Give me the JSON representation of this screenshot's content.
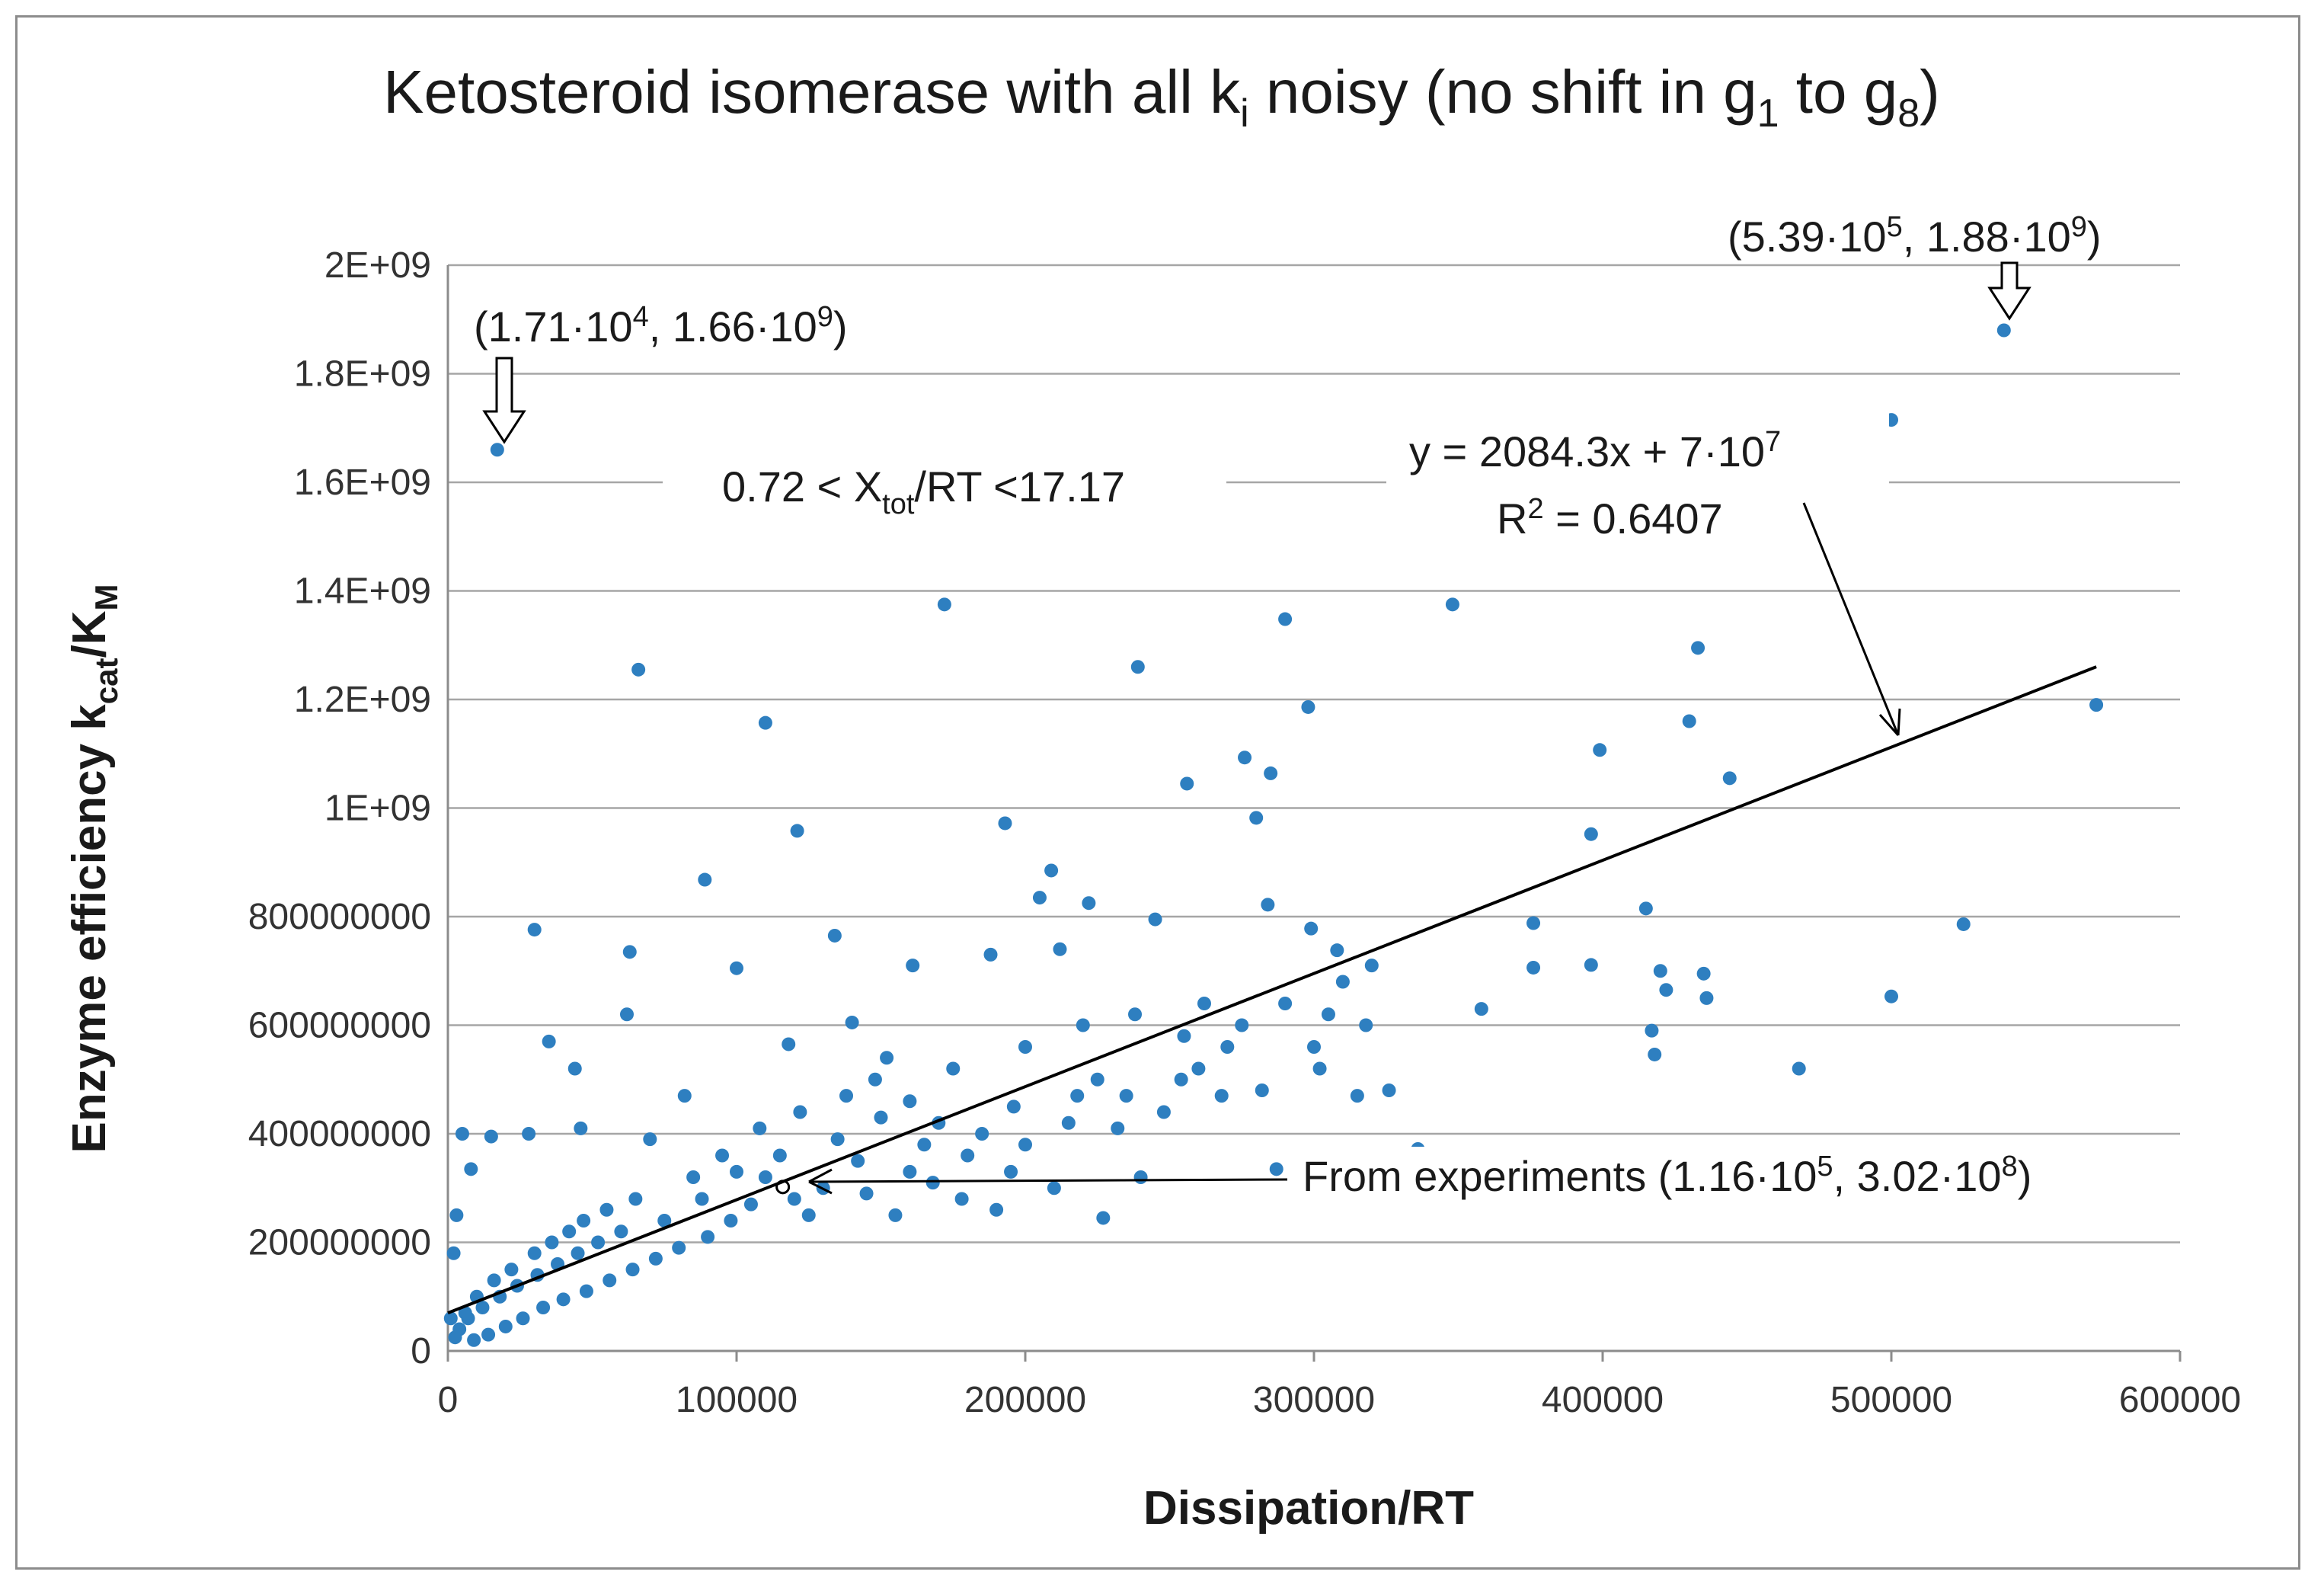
{
  "chart_data": {
    "type": "scatter",
    "title": {
      "main": "Ketosteroid isomerase with all k",
      "sub_i": "i",
      "mid": " noisy (no shift in g",
      "sub_1": "1",
      "to": " to g",
      "sub_8": "8",
      "end": ")"
    },
    "xlabel": "Dissipation/RT",
    "ylabel": {
      "main": "Enzyme  efficiency  k",
      "sub_cat": "cat",
      "slash": "/K",
      "sub_m": "M"
    },
    "xlim": [
      0,
      600000
    ],
    "ylim": [
      0,
      2000000000
    ],
    "x_tick_labels": [
      "0",
      "100000",
      "200000",
      "300000",
      "400000",
      "500000",
      "600000"
    ],
    "y_tick_labels": [
      "0",
      "200000000",
      "400000000",
      "600000000",
      "800000000",
      "1E+09",
      "1.2E+09",
      "1.4E+09",
      "1.6E+09",
      "1.8E+09",
      "2E+09"
    ],
    "grid": "horizontal",
    "legend": "none",
    "marker_color": "#2e7fc0",
    "trendline": {
      "slope": 2084.3,
      "intercept": 70000000,
      "x_range": [
        0,
        571000
      ],
      "color": "#000000"
    },
    "series": [
      {
        "points": [
          [
            17100,
            1660000000
          ],
          [
            539000,
            1880000000
          ],
          [
            500000,
            1715000000
          ],
          [
            172000,
            1375000000
          ],
          [
            348000,
            1375000000
          ],
          [
            290000,
            1348000000
          ],
          [
            66000,
            1255000000
          ],
          [
            239000,
            1260000000
          ],
          [
            433000,
            1295000000
          ],
          [
            571000,
            1190000000
          ],
          [
            110000,
            1157000000
          ],
          [
            298000,
            1186000000
          ],
          [
            430000,
            1160000000
          ],
          [
            399000,
            1107000000
          ],
          [
            276000,
            1093000000
          ],
          [
            285000,
            1064000000
          ],
          [
            256000,
            1045000000
          ],
          [
            444000,
            1055000000
          ],
          [
            121000,
            958000000
          ],
          [
            193000,
            972000000
          ],
          [
            280000,
            982000000
          ],
          [
            396000,
            952000000
          ],
          [
            89000,
            868000000
          ],
          [
            30000,
            776000000
          ],
          [
            63000,
            735000000
          ],
          [
            415000,
            815000000
          ],
          [
            376000,
            788000000
          ],
          [
            525000,
            786000000
          ],
          [
            284000,
            822000000
          ],
          [
            209000,
            885000000
          ],
          [
            299000,
            778000000
          ],
          [
            376000,
            706000000
          ],
          [
            396000,
            711000000
          ],
          [
            420000,
            700000000
          ],
          [
            435000,
            695000000
          ],
          [
            422000,
            665000000
          ],
          [
            436000,
            650000000
          ],
          [
            500000,
            653000000
          ],
          [
            358000,
            630000000
          ],
          [
            417000,
            590000000
          ],
          [
            418000,
            546000000
          ],
          [
            468000,
            520000000
          ],
          [
            336000,
            372000000
          ],
          [
            240000,
            320000000
          ],
          [
            227000,
            245000000
          ],
          [
            287000,
            335000000
          ],
          [
            205000,
            835000000
          ],
          [
            222000,
            825000000
          ],
          [
            245000,
            795000000
          ],
          [
            188000,
            730000000
          ],
          [
            212000,
            740000000
          ],
          [
            134000,
            765000000
          ],
          [
            161000,
            710000000
          ],
          [
            262000,
            640000000
          ],
          [
            308000,
            738000000
          ],
          [
            320000,
            710000000
          ],
          [
            100000,
            705000000
          ],
          [
            62000,
            620000000
          ],
          [
            35000,
            570000000
          ],
          [
            44000,
            520000000
          ],
          [
            15000,
            395000000
          ],
          [
            5000,
            400000000
          ],
          [
            8000,
            335000000
          ],
          [
            28000,
            400000000
          ],
          [
            46000,
            410000000
          ],
          [
            3000,
            250000000
          ],
          [
            2000,
            180000000
          ],
          [
            1000,
            60000000
          ],
          [
            70000,
            390000000
          ],
          [
            82000,
            470000000
          ],
          [
            118000,
            565000000
          ],
          [
            140000,
            605000000
          ],
          [
            152000,
            540000000
          ],
          [
            175000,
            520000000
          ],
          [
            196000,
            450000000
          ],
          [
            218000,
            470000000
          ],
          [
            232000,
            410000000
          ],
          [
            254000,
            500000000
          ],
          [
            270000,
            560000000
          ],
          [
            302000,
            520000000
          ],
          [
            326000,
            480000000
          ],
          [
            315000,
            470000000
          ],
          [
            150000,
            430000000
          ],
          [
            165000,
            380000000
          ],
          [
            180000,
            360000000
          ],
          [
            195000,
            330000000
          ],
          [
            210000,
            300000000
          ],
          [
            160000,
            330000000
          ],
          [
            130000,
            300000000
          ],
          [
            142000,
            350000000
          ],
          [
            120000,
            280000000
          ],
          [
            105000,
            270000000
          ],
          [
            98000,
            240000000
          ],
          [
            90000,
            210000000
          ],
          [
            80000,
            190000000
          ],
          [
            72000,
            170000000
          ],
          [
            64000,
            150000000
          ],
          [
            56000,
            130000000
          ],
          [
            48000,
            110000000
          ],
          [
            40000,
            95000000
          ],
          [
            33000,
            80000000
          ],
          [
            26000,
            60000000
          ],
          [
            20000,
            45000000
          ],
          [
            14000,
            30000000
          ],
          [
            9000,
            20000000
          ],
          [
            110000,
            320000000
          ],
          [
            125000,
            250000000
          ],
          [
            88000,
            280000000
          ],
          [
            75000,
            240000000
          ],
          [
            60000,
            220000000
          ],
          [
            52000,
            200000000
          ],
          [
            45000,
            180000000
          ],
          [
            38000,
            160000000
          ],
          [
            31000,
            140000000
          ],
          [
            24000,
            120000000
          ],
          [
            18000,
            100000000
          ],
          [
            12000,
            80000000
          ],
          [
            7000,
            60000000
          ],
          [
            4000,
            40000000
          ],
          [
            2500,
            25000000
          ],
          [
            160000,
            460000000
          ],
          [
            170000,
            420000000
          ],
          [
            185000,
            400000000
          ],
          [
            200000,
            380000000
          ],
          [
            215000,
            420000000
          ],
          [
            225000,
            500000000
          ],
          [
            235000,
            470000000
          ],
          [
            248000,
            440000000
          ],
          [
            260000,
            520000000
          ],
          [
            275000,
            600000000
          ],
          [
            290000,
            640000000
          ],
          [
            305000,
            620000000
          ],
          [
            318000,
            600000000
          ],
          [
            100000,
            330000000
          ],
          [
            115000,
            360000000
          ],
          [
            135000,
            390000000
          ],
          [
            145000,
            290000000
          ],
          [
            155000,
            250000000
          ],
          [
            168000,
            310000000
          ],
          [
            178000,
            280000000
          ],
          [
            190000,
            260000000
          ],
          [
            85000,
            320000000
          ],
          [
            95000,
            360000000
          ],
          [
            108000,
            410000000
          ],
          [
            122000,
            440000000
          ],
          [
            138000,
            470000000
          ],
          [
            148000,
            500000000
          ],
          [
            200000,
            560000000
          ],
          [
            220000,
            600000000
          ],
          [
            238000,
            620000000
          ],
          [
            255000,
            580000000
          ],
          [
            268000,
            470000000
          ],
          [
            282000,
            480000000
          ],
          [
            300000,
            560000000
          ],
          [
            310000,
            680000000
          ],
          [
            65000,
            280000000
          ],
          [
            55000,
            260000000
          ],
          [
            47000,
            240000000
          ],
          [
            42000,
            220000000
          ],
          [
            36000,
            200000000
          ],
          [
            30000,
            180000000
          ],
          [
            22000,
            150000000
          ],
          [
            16000,
            130000000
          ],
          [
            10000,
            100000000
          ],
          [
            6000,
            70000000
          ]
        ]
      }
    ]
  },
  "annotations": {
    "point_top_left": {
      "open": "(1.71·10",
      "exp1": "4",
      "mid": ", 1.66·10",
      "exp2": "9",
      "close": ")"
    },
    "point_top_right": {
      "open": "(5.39·10",
      "exp1": "5",
      "mid": ", 1.88·10",
      "exp2": "9",
      "close": ")"
    },
    "range": {
      "pre": "0.72 < X",
      "sub": "tot",
      "post": "/RT <17.17"
    },
    "equation": {
      "pre": "y = 2084.3x + 7·10",
      "exp": "7"
    },
    "r2": {
      "pre": "R",
      "exp": "2",
      "post": " = 0.6407"
    },
    "experiments": {
      "pre": "From experiments  (1.16·10",
      "exp1": "5",
      "mid": ", 3.02·10",
      "exp2": "8",
      "close": ")"
    }
  },
  "experiment_point": {
    "x": 116000,
    "y": 302000000
  }
}
